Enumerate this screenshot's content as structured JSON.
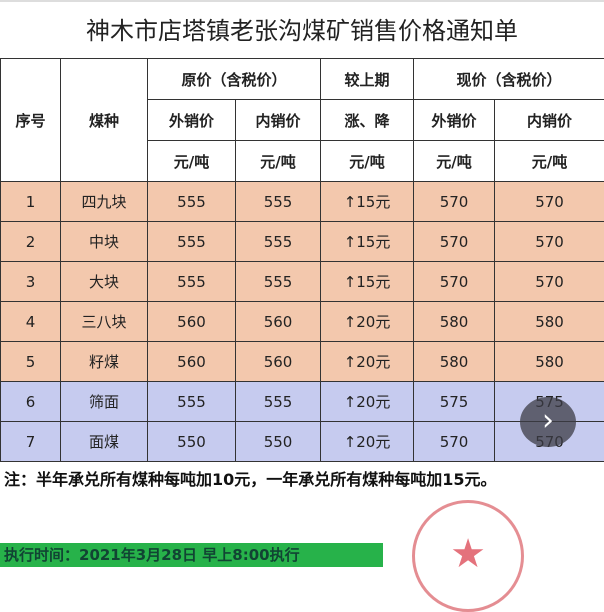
{
  "title": "神木市店塔镇老张沟煤矿销售价格通知单",
  "header": {
    "seq": "序号",
    "coal": "煤种",
    "orig": "原价（含税价）",
    "change": "较上期",
    "cur": "现价（含税价）",
    "out": "外销价",
    "in": "内销价",
    "updown": "涨、降",
    "unit": "元/吨"
  },
  "rows": [
    {
      "seq": "1",
      "coal": "四九块",
      "o_out": "555",
      "o_in": "555",
      "chg": "↑15元",
      "c_out": "570",
      "c_in": "570"
    },
    {
      "seq": "2",
      "coal": "中块",
      "o_out": "555",
      "o_in": "555",
      "chg": "↑15元",
      "c_out": "570",
      "c_in": "570"
    },
    {
      "seq": "3",
      "coal": "大块",
      "o_out": "555",
      "o_in": "555",
      "chg": "↑15元",
      "c_out": "570",
      "c_in": "570"
    },
    {
      "seq": "4",
      "coal": "三八块",
      "o_out": "560",
      "o_in": "560",
      "chg": "↑20元",
      "c_out": "580",
      "c_in": "580"
    },
    {
      "seq": "5",
      "coal": "籽煤",
      "o_out": "560",
      "o_in": "560",
      "chg": "↑20元",
      "c_out": "580",
      "c_in": "580"
    },
    {
      "seq": "6",
      "coal": "筛面",
      "o_out": "555",
      "o_in": "555",
      "chg": "↑20元",
      "c_out": "575",
      "c_in": "575"
    },
    {
      "seq": "7",
      "coal": "面煤",
      "o_out": "550",
      "o_in": "550",
      "chg": "↑20元",
      "c_out": "570",
      "c_in": "570"
    }
  ],
  "note": "注：半年承兑所有煤种每吨加10元，一年承兑所有煤种每吨加15元。",
  "exec": "执行时间：2021年3月28日 早上8:00执行",
  "next_glyph": "›",
  "stamp_glyph": "★",
  "colors": {
    "peach": "#f3c8ad",
    "lavender": "#c6cbef",
    "green": "#27b24a",
    "stamp": "#e07a80"
  }
}
